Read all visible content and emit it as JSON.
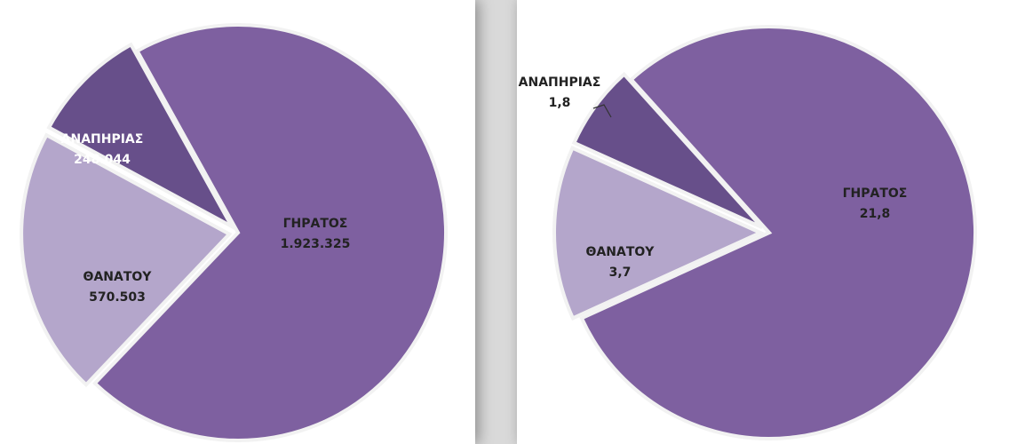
{
  "chart_data": [
    {
      "type": "pie",
      "categories": [
        "ΓΗΡΑΤΟΣ",
        "ΘΑΝΑΤΟΥ",
        "ΑΝΑΠΗΡΙΑΣ"
      ],
      "values": [
        1923325,
        570503,
        248044
      ],
      "value_labels": [
        "1.923.325",
        "570.503",
        "248.044"
      ],
      "colors": [
        "#7e60a0",
        "#b4a6cb",
        "#674f8a"
      ]
    },
    {
      "type": "pie",
      "categories": [
        "ΓΗΡΑΤΟΣ",
        "ΘΑΝΑΤΟΥ",
        "ΑΝΑΠΗΡΙΑΣ"
      ],
      "values": [
        21.8,
        3.7,
        1.8
      ],
      "value_labels": [
        "21,8",
        "3,7",
        "1,8"
      ],
      "colors": [
        "#7e60a0",
        "#b4a6cb",
        "#674f8a"
      ]
    }
  ]
}
